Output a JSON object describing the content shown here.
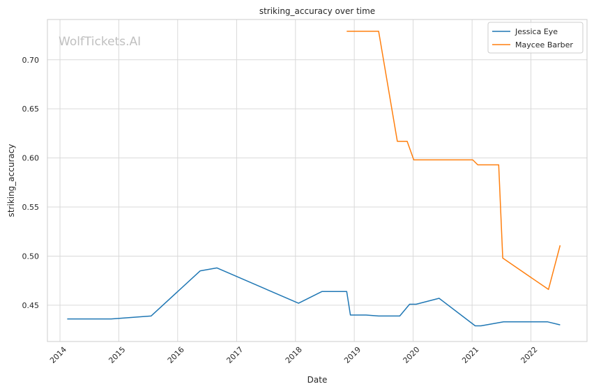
{
  "chart_data": {
    "type": "line",
    "title": "striking_accuracy over time",
    "xlabel": "Date",
    "ylabel": "striking_accuracy",
    "watermark": "WolfTickets.AI",
    "x_ticks": [
      "2014",
      "2015",
      "2016",
      "2017",
      "2018",
      "2019",
      "2020",
      "2021",
      "2022"
    ],
    "y_ticks": [
      "0.45",
      "0.50",
      "0.55",
      "0.60",
      "0.65",
      "0.70"
    ],
    "xlim": [
      "2013-10-15",
      "2022-12-15"
    ],
    "ylim": [
      0.413,
      0.741
    ],
    "grid": true,
    "legend_position": "top-right",
    "series": [
      {
        "name": "Jessica Eye",
        "color": "#1f77b4",
        "points": [
          {
            "x": "2014-02-15",
            "y": 0.436
          },
          {
            "x": "2014-11-15",
            "y": 0.436
          },
          {
            "x": "2015-07-20",
            "y": 0.439
          },
          {
            "x": "2016-05-20",
            "y": 0.485
          },
          {
            "x": "2016-09-01",
            "y": 0.488
          },
          {
            "x": "2018-01-20",
            "y": 0.452
          },
          {
            "x": "2018-06-15",
            "y": 0.464
          },
          {
            "x": "2018-11-15",
            "y": 0.464
          },
          {
            "x": "2018-12-08",
            "y": 0.44
          },
          {
            "x": "2019-03-15",
            "y": 0.44
          },
          {
            "x": "2019-06-01",
            "y": 0.439
          },
          {
            "x": "2019-10-10",
            "y": 0.439
          },
          {
            "x": "2019-12-10",
            "y": 0.451
          },
          {
            "x": "2020-01-20",
            "y": 0.451
          },
          {
            "x": "2020-06-10",
            "y": 0.457
          },
          {
            "x": "2021-01-20",
            "y": 0.429
          },
          {
            "x": "2021-02-25",
            "y": 0.429
          },
          {
            "x": "2021-07-15",
            "y": 0.433
          },
          {
            "x": "2022-04-15",
            "y": 0.433
          },
          {
            "x": "2022-07-01",
            "y": 0.43
          }
        ]
      },
      {
        "name": "Maycee Barber",
        "color": "#ff7f0e",
        "points": [
          {
            "x": "2018-11-15",
            "y": 0.729
          },
          {
            "x": "2019-06-01",
            "y": 0.729
          },
          {
            "x": "2019-09-25",
            "y": 0.617
          },
          {
            "x": "2019-11-25",
            "y": 0.617
          },
          {
            "x": "2020-01-05",
            "y": 0.598
          },
          {
            "x": "2021-01-05",
            "y": 0.598
          },
          {
            "x": "2021-02-05",
            "y": 0.593
          },
          {
            "x": "2021-06-15",
            "y": 0.593
          },
          {
            "x": "2021-07-10",
            "y": 0.498
          },
          {
            "x": "2022-04-20",
            "y": 0.466
          },
          {
            "x": "2022-07-01",
            "y": 0.511
          }
        ]
      }
    ]
  }
}
